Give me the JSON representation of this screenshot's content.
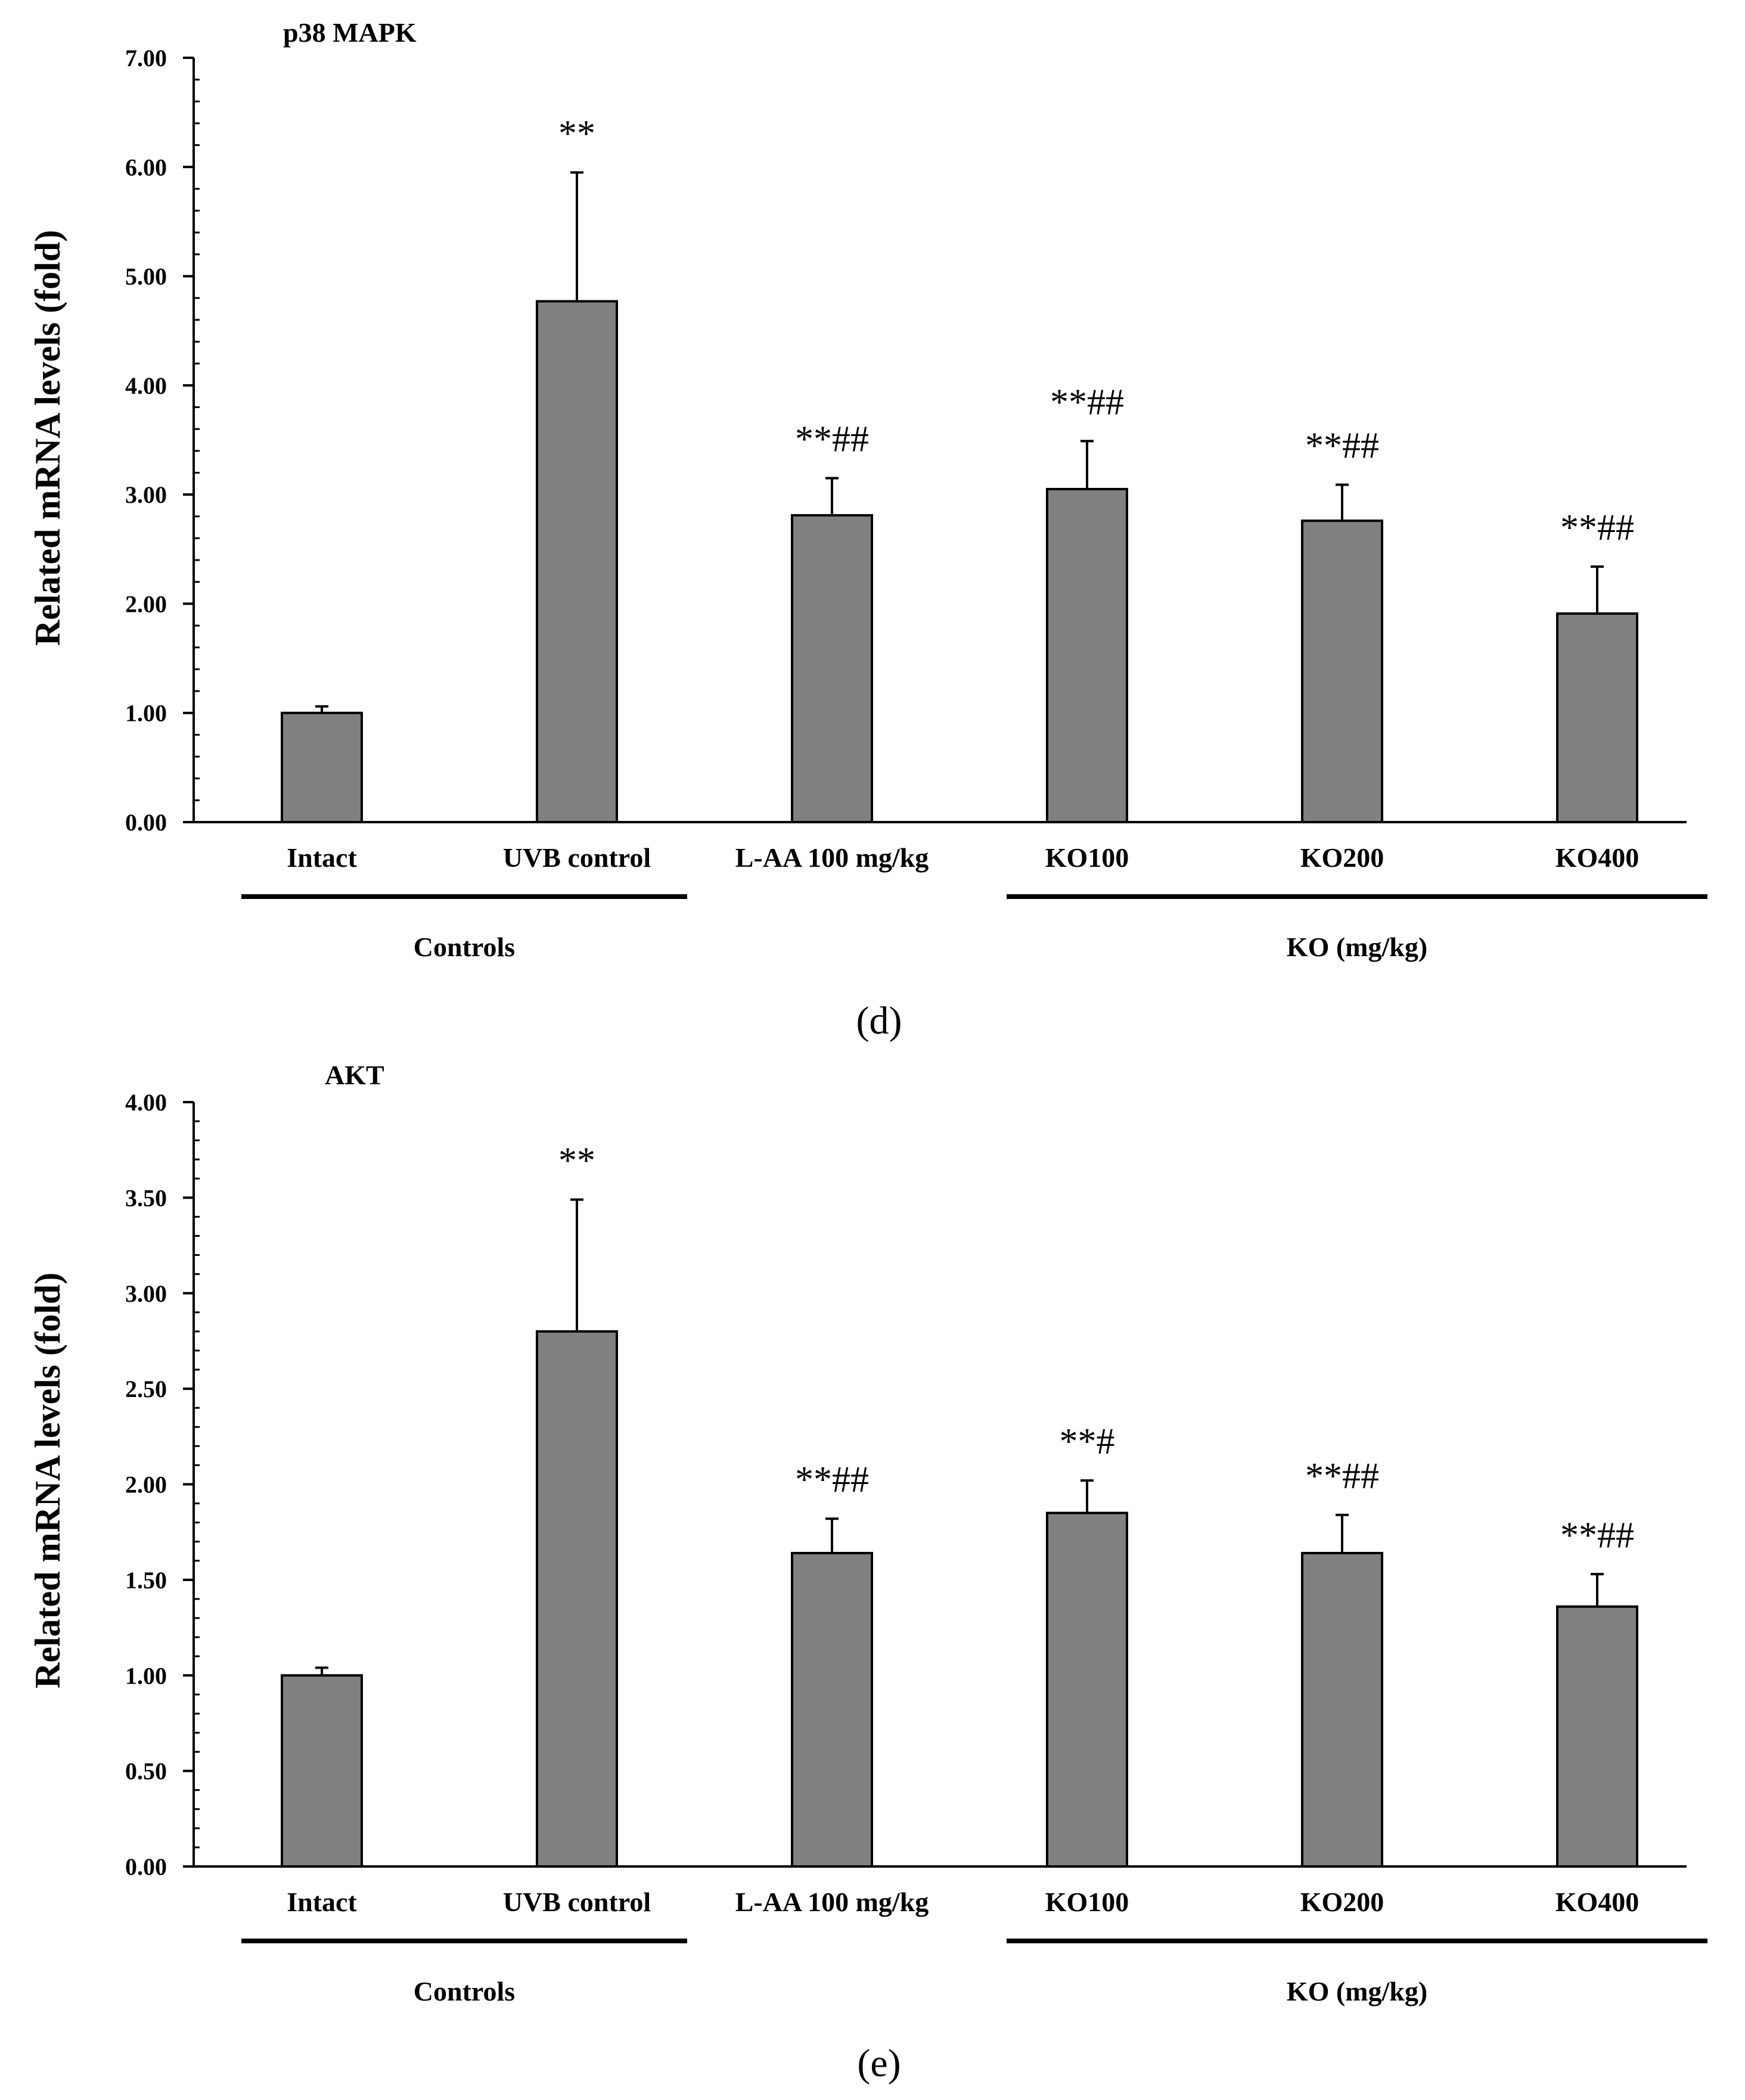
{
  "colors": {
    "bar_fill": "#808080",
    "bar_stroke": "#000000",
    "axis": "#000000",
    "text": "#000000",
    "background": "#ffffff"
  },
  "chart_data": [
    {
      "type": "bar",
      "panel_label": "(d)",
      "title": "p38 MAPK",
      "xlabel": "",
      "ylabel": "Related mRNA levels (fold)",
      "ylim": [
        0,
        7
      ],
      "yticks": [
        "0.00",
        "1.00",
        "2.00",
        "3.00",
        "4.00",
        "5.00",
        "6.00",
        "7.00"
      ],
      "yticks_values": [
        0,
        1,
        2,
        3,
        4,
        5,
        6,
        7
      ],
      "categories": [
        "Intact",
        "UVB control",
        "L-AA 100 mg/kg",
        "KO100",
        "KO200",
        "KO400"
      ],
      "values": [
        1.0,
        4.77,
        2.81,
        3.05,
        2.76,
        1.91
      ],
      "errors": [
        0.06,
        1.18,
        0.34,
        0.44,
        0.33,
        0.43
      ],
      "annotations": [
        "",
        "**",
        "**##",
        "**##",
        "**##",
        "**##"
      ],
      "groups": [
        {
          "label": "Controls",
          "start": 0,
          "end": 1
        },
        {
          "label": "KO (mg/kg)",
          "start": 3,
          "end": 5
        }
      ]
    },
    {
      "type": "bar",
      "panel_label": "(e)",
      "title": "AKT",
      "xlabel": "",
      "ylabel": "Related mRNA levels (fold)",
      "ylim": [
        0,
        4
      ],
      "yticks": [
        "0.00",
        "0.50",
        "1.00",
        "1.50",
        "2.00",
        "2.50",
        "3.00",
        "3.50",
        "4.00"
      ],
      "yticks_values": [
        0,
        0.5,
        1,
        1.5,
        2,
        2.5,
        3,
        3.5,
        4
      ],
      "categories": [
        "Intact",
        "UVB control",
        "L-AA 100 mg/kg",
        "KO100",
        "KO200",
        "KO400"
      ],
      "values": [
        1.0,
        2.8,
        1.64,
        1.85,
        1.64,
        1.36
      ],
      "errors": [
        0.04,
        0.69,
        0.18,
        0.17,
        0.2,
        0.17
      ],
      "annotations": [
        "",
        "**",
        "**##",
        "**#",
        "**##",
        "**##"
      ],
      "groups": [
        {
          "label": "Controls",
          "start": 0,
          "end": 1
        },
        {
          "label": "KO (mg/kg)",
          "start": 3,
          "end": 5
        }
      ]
    }
  ]
}
